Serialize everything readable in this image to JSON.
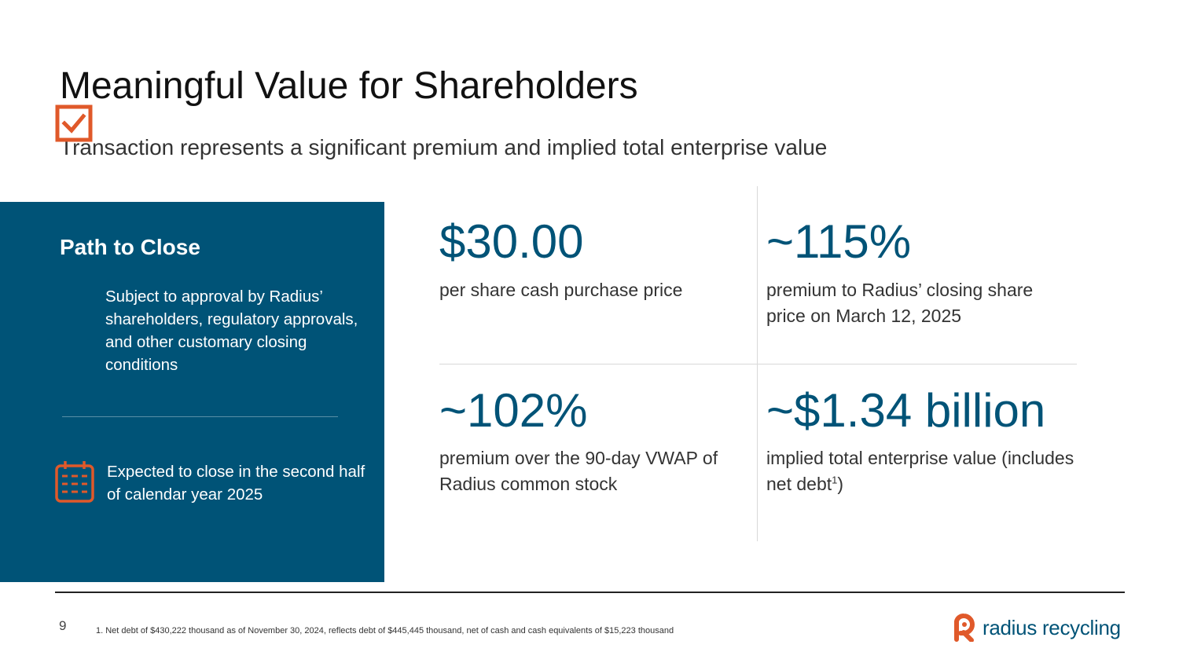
{
  "title": "Meaningful Value for Shareholders",
  "subtitle": "Transaction represents a significant premium and implied total enterprise value",
  "path_to_close": {
    "heading": "Path to Close",
    "steps": [
      {
        "icon": "checkbox-icon",
        "text": "Subject to approval by Radius’ shareholders, regulatory approvals, and other customary closing conditions"
      },
      {
        "icon": "calendar-icon",
        "text": "Expected to close in the second half of calendar year 2025"
      }
    ]
  },
  "metrics": [
    {
      "value": "$30.00",
      "description": "per share cash purchase price"
    },
    {
      "value": "~115%",
      "description": "premium to Radius’ closing share price on March 12, 2025"
    },
    {
      "value": "~102%",
      "description": "premium over the 90-day VWAP of Radius common stock"
    },
    {
      "value": "~$1.34 billion",
      "description": "implied total enterprise value (includes net debt",
      "footnote_ref": "1",
      "description_suffix": ")"
    }
  ],
  "footer": {
    "page_number": "9",
    "footnote": "1. Net debt of $430,222 thousand as of November 30, 2024, reflects debt of $445,445 thousand, net of cash and cash equivalents of $15,223 thousand",
    "logo_text": "radius recycling"
  },
  "colors": {
    "brand_blue": "#005377",
    "accent_orange": "#E0592A"
  }
}
